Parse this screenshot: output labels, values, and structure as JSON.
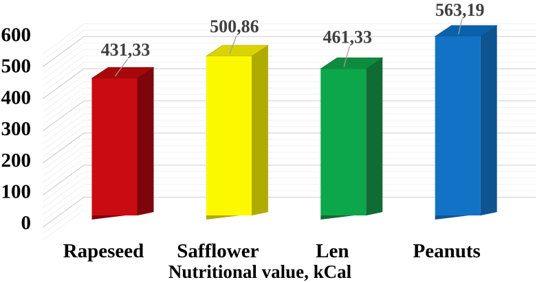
{
  "chart_data": {
    "type": "bar",
    "style": "3d-column",
    "title": "",
    "xlabel": "Nutritional value, kCal",
    "ylabel": "",
    "categories": [
      "Rapeseed",
      "Safflower",
      "Len",
      "Peanuts"
    ],
    "values": [
      431.33,
      500.86,
      461.33,
      563.19
    ],
    "value_labels": [
      "431,33",
      "500,86",
      "461,33",
      "563,19"
    ],
    "decimal_separator": ",",
    "ylim": [
      0,
      600
    ],
    "yticks": [
      0,
      100,
      200,
      300,
      400,
      500,
      600
    ],
    "grid": {
      "major_interval": 100,
      "minor_interval": 20,
      "major_color": "#D7D7D7",
      "minor_color": "#F1F1F1",
      "wall_major_color": "#D2D2D2",
      "wall_minor_color": "#EFEFEF"
    },
    "legend": false,
    "bars": [
      {
        "category": "Rapeseed",
        "value": 431.33,
        "label": "431,33",
        "color_front": "#C90C11",
        "color_top": "#A8080C",
        "color_side": "#7E050B"
      },
      {
        "category": "Safflower",
        "value": 500.86,
        "label": "500,86",
        "color_front": "#FBF800",
        "color_top": "#D9D400",
        "color_side": "#B0AB00"
      },
      {
        "category": "Len",
        "value": 461.33,
        "label": "461,33",
        "color_front": "#0CA74A",
        "color_top": "#0E8C3E",
        "color_side": "#116B34"
      },
      {
        "category": "Peanuts",
        "value": 563.19,
        "label": "563,19",
        "color_front": "#1272C6",
        "color_top": "#0A61AB",
        "color_side": "#0D5590"
      }
    ],
    "text_colors": {
      "data_labels": "#3F3F3F",
      "axis_labels": "#000000"
    },
    "leader_line_color": "#9E9E9E"
  }
}
